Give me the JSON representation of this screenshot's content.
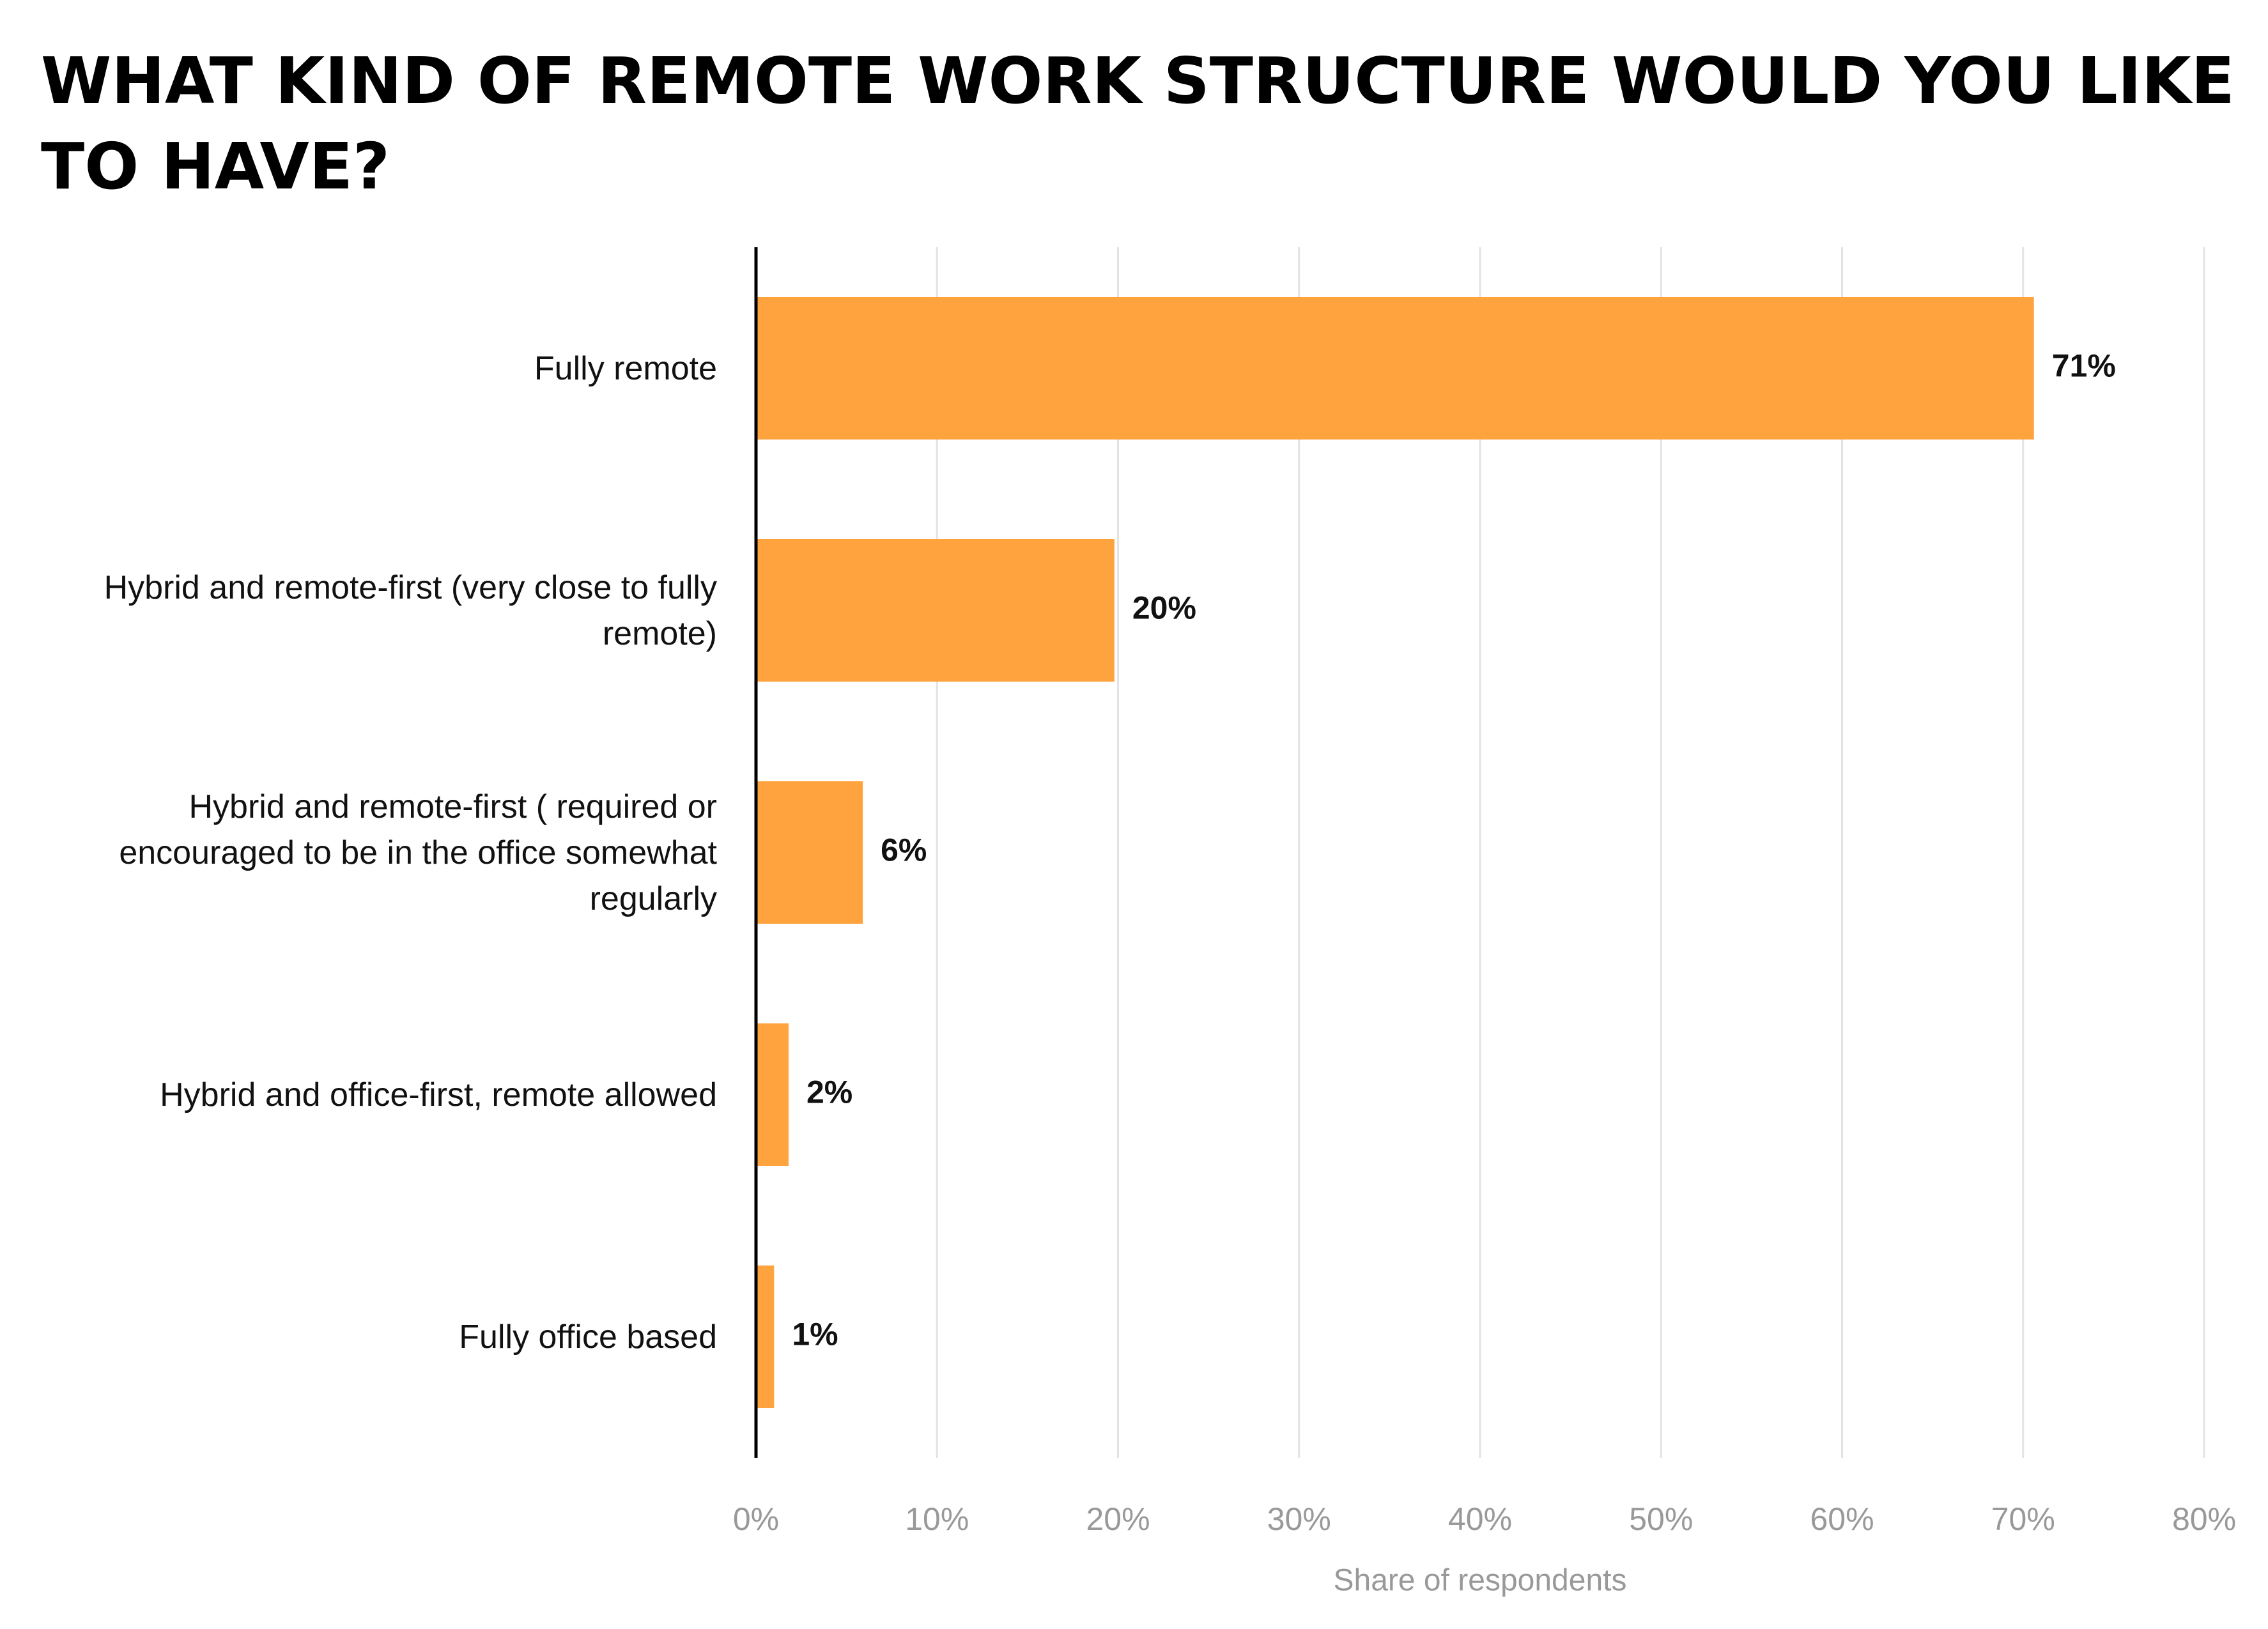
{
  "chart_data": {
    "type": "bar",
    "orientation": "horizontal",
    "title": "WHAT KIND OF REMOTE WORK STRUCTURE WOULD YOU LIKE TO HAVE?",
    "xlabel": "Share of respondents",
    "categories": [
      "Fully remote",
      "Hybrid and remote-first (very close to fully remote)",
      "Hybrid and remote-first ( required or encouraged to be in the office somewhat regularly",
      "Hybrid and office-first, remote allowed",
      "Fully office based"
    ],
    "values": [
      70.6,
      19.8,
      5.9,
      1.8,
      1.0
    ],
    "value_labels": [
      "71%",
      "20%",
      "6%",
      "2%",
      "1%"
    ],
    "color": "#ffa33e",
    "xlim": [
      0,
      80
    ],
    "xticks": [
      {
        "value": 0,
        "label": "0%"
      },
      {
        "value": 10,
        "label": "10%"
      },
      {
        "value": 20,
        "label": "20%"
      },
      {
        "value": 30,
        "label": "30%"
      },
      {
        "value": 40,
        "label": "40%"
      },
      {
        "value": 50,
        "label": "50%"
      },
      {
        "value": 60,
        "label": "60%"
      },
      {
        "value": 70,
        "label": "70%"
      },
      {
        "value": 80,
        "label": "80%"
      }
    ],
    "grid": true
  }
}
